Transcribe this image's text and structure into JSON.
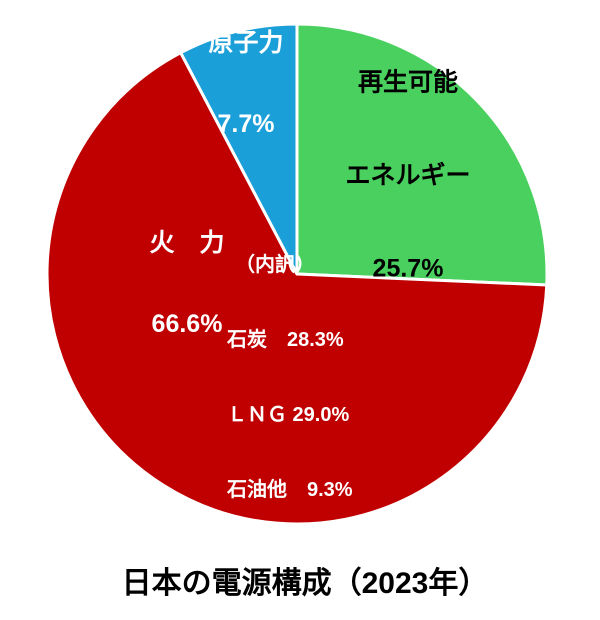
{
  "chart_data": {
    "type": "pie",
    "title": "日本の電源構成（2023年）",
    "start_angle_deg": 0,
    "direction": "clockwise",
    "stroke_color": "#ffffff",
    "background_color": "#ffffff",
    "slices": [
      {
        "id": "renewable",
        "label": "再生可能エネルギー",
        "value": 25.7,
        "color": "#4AD05E",
        "text_color": "#000000"
      },
      {
        "id": "thermal",
        "label": "火力",
        "value": 66.6,
        "color": "#C00000",
        "text_color": "#ffffff",
        "breakdown": [
          {
            "label": "石炭",
            "value": 28.3
          },
          {
            "label": "ＬＮＧ",
            "value": 29.0
          },
          {
            "label": "石油他",
            "value": 9.3
          }
        ]
      },
      {
        "id": "nuclear",
        "label": "原子力",
        "value": 7.7,
        "color": "#1B9FD8",
        "text_color": "#ffffff"
      }
    ]
  },
  "labels": {
    "renewable": {
      "line1": "再生可能",
      "line2": "エネルギー",
      "line3": "25.7%"
    },
    "nuclear": {
      "line1": "原子力",
      "line2": "7.7%"
    },
    "thermal": {
      "line1": "火　力",
      "line2": "66.6%"
    },
    "breakdown": {
      "heading": "（内訳）",
      "line1": "石炭　28.3%",
      "line2": "ＬＮＧ 29.0%",
      "line3": "石油他　9.3%"
    }
  }
}
